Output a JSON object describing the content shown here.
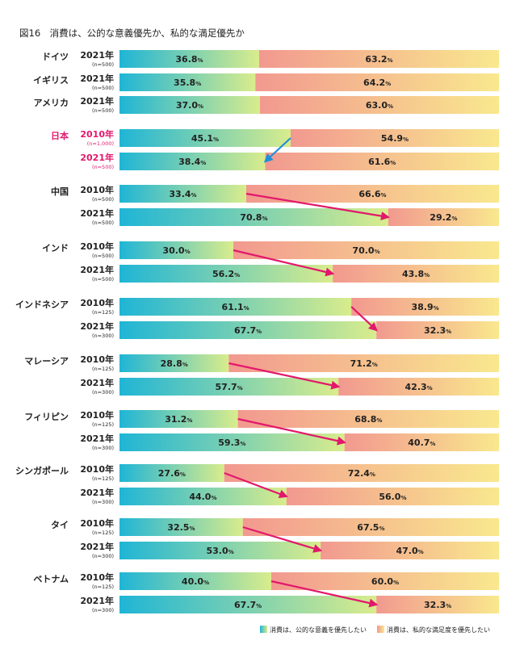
{
  "chart_data": {
    "type": "bar",
    "title": "図16　消費は、公的な意義優先か、私的な満足優先か",
    "unit": "%",
    "series_names": [
      "消費は、公的な意義を優先したい",
      "消費は、私的な満足度を優先したい"
    ],
    "colors": {
      "public_start": "#1fb5d6",
      "public_end": "#d9ec8c",
      "private_start": "#f2998f",
      "private_end": "#f9e88e",
      "highlight": "#e2186c",
      "japan_arrow": "#1f8fd8",
      "arrow": "#e2186c",
      "text": "#222222"
    },
    "groups": [
      {
        "country": "ドイツ",
        "highlight": false,
        "rows": [
          {
            "year": "2021年",
            "n": "(n=500)",
            "public": 36.8,
            "private": 63.2
          }
        ]
      },
      {
        "country": "イギリス",
        "highlight": false,
        "rows": [
          {
            "year": "2021年",
            "n": "(n=500)",
            "public": 35.8,
            "private": 64.2
          }
        ]
      },
      {
        "country": "アメリカ",
        "highlight": false,
        "rows": [
          {
            "year": "2021年",
            "n": "(n=500)",
            "public": 37.0,
            "private": 63.0
          }
        ]
      },
      {
        "country": "日本",
        "highlight": true,
        "rows": [
          {
            "year": "2010年",
            "n": "(n=1,000)",
            "public": 45.1,
            "private": 54.9
          },
          {
            "year": "2021年",
            "n": "(n=500)",
            "public": 38.4,
            "private": 61.6
          }
        ]
      },
      {
        "country": "中国",
        "highlight": false,
        "rows": [
          {
            "year": "2010年",
            "n": "(n=500)",
            "public": 33.4,
            "private": 66.6
          },
          {
            "year": "2021年",
            "n": "(n=500)",
            "public": 70.8,
            "private": 29.2
          }
        ]
      },
      {
        "country": "インド",
        "highlight": false,
        "rows": [
          {
            "year": "2010年",
            "n": "(n=500)",
            "public": 30.0,
            "private": 70.0
          },
          {
            "year": "2021年",
            "n": "(n=500)",
            "public": 56.2,
            "private": 43.8
          }
        ]
      },
      {
        "country": "インドネシア",
        "highlight": false,
        "rows": [
          {
            "year": "2010年",
            "n": "(n=125)",
            "public": 61.1,
            "private": 38.9
          },
          {
            "year": "2021年",
            "n": "(n=300)",
            "public": 67.7,
            "private": 32.3
          }
        ]
      },
      {
        "country": "マレーシア",
        "highlight": false,
        "rows": [
          {
            "year": "2010年",
            "n": "(n=125)",
            "public": 28.8,
            "private": 71.2
          },
          {
            "year": "2021年",
            "n": "(n=300)",
            "public": 57.7,
            "private": 42.3
          }
        ]
      },
      {
        "country": "フィリピン",
        "highlight": false,
        "rows": [
          {
            "year": "2010年",
            "n": "(n=125)",
            "public": 31.2,
            "private": 68.8
          },
          {
            "year": "2021年",
            "n": "(n=300)",
            "public": 59.3,
            "private": 40.7
          }
        ]
      },
      {
        "country": "シンガポール",
        "highlight": false,
        "rows": [
          {
            "year": "2010年",
            "n": "(n=125)",
            "public": 27.6,
            "private": 72.4
          },
          {
            "year": "2021年",
            "n": "(n=300)",
            "public": 44.0,
            "private": 56.0
          }
        ]
      },
      {
        "country": "タイ",
        "highlight": false,
        "rows": [
          {
            "year": "2010年",
            "n": "(n=125)",
            "public": 32.5,
            "private": 67.5
          },
          {
            "year": "2021年",
            "n": "(n=300)",
            "public": 53.0,
            "private": 47.0
          }
        ]
      },
      {
        "country": "ベトナム",
        "highlight": false,
        "rows": [
          {
            "year": "2010年",
            "n": "(n=125)",
            "public": 40.0,
            "private": 60.0
          },
          {
            "year": "2021年",
            "n": "(n=300)",
            "public": 67.7,
            "private": 32.3
          }
        ]
      }
    ]
  }
}
